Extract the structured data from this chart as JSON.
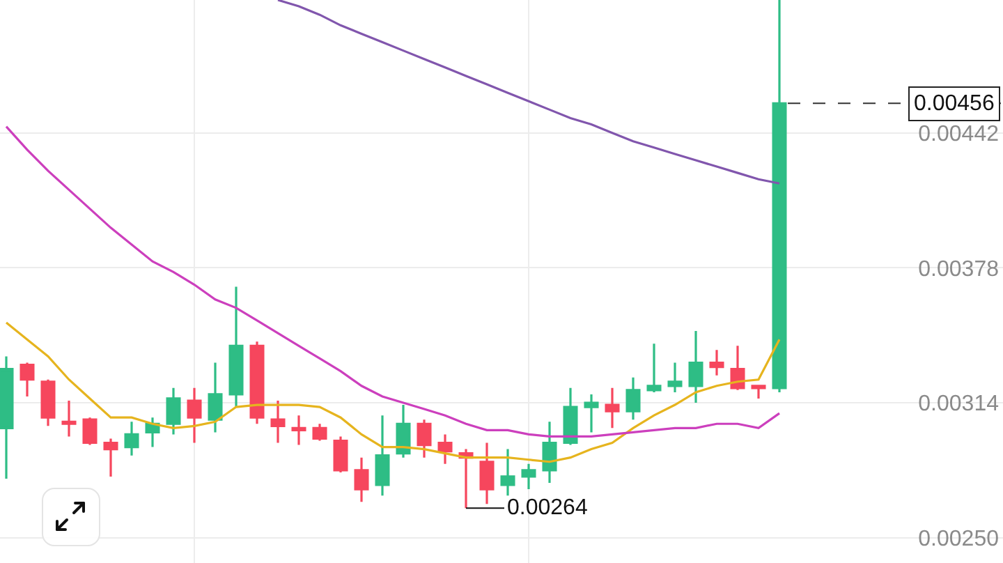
{
  "chart_data": {
    "type": "candlestick",
    "categories": [
      null,
      null,
      null,
      null,
      null,
      null,
      null,
      null,
      null,
      null,
      null,
      null,
      null,
      null,
      null,
      null,
      null,
      null,
      null,
      null,
      null,
      null,
      null,
      null,
      null,
      null,
      null,
      null,
      null,
      null,
      null,
      null,
      null,
      null,
      null,
      null,
      null,
      null
    ],
    "ohlc": [
      [
        0.00302,
        0.00336,
        0.00278,
        0.0033
      ],
      [
        0.00332,
        0.00333,
        0.00317,
        0.00325
      ],
      [
        0.00324,
        0.00325,
        0.00303,
        0.00307
      ],
      [
        0.00305,
        0.00315,
        0.00298,
        0.00304
      ],
      [
        0.00306,
        0.00307,
        0.00294,
        0.00295
      ],
      [
        0.00295,
        0.00297,
        0.00279,
        0.00292
      ],
      [
        0.00293,
        0.00305,
        0.00289,
        0.00299
      ],
      [
        0.003,
        0.00307,
        0.00293,
        0.00304
      ],
      [
        0.00304,
        0.00321,
        0.00299,
        0.00316
      ],
      [
        0.00315,
        0.00321,
        0.00295,
        0.00307
      ],
      [
        0.00306,
        0.00333,
        0.003,
        0.00318
      ],
      [
        0.00318,
        0.00369,
        0.00312,
        0.00341
      ],
      [
        0.00341,
        0.00343,
        0.00304,
        0.00307
      ],
      [
        0.00306,
        0.00315,
        0.00295,
        0.00303
      ],
      [
        0.00302,
        0.00308,
        0.00294,
        0.00301
      ],
      [
        0.00302,
        0.00304,
        0.00296,
        0.00297
      ],
      [
        0.00296,
        0.00298,
        0.00281,
        0.00282
      ],
      [
        0.00282,
        0.00288,
        0.00267,
        0.00273
      ],
      [
        0.00275,
        0.00308,
        0.0027,
        0.00289
      ],
      [
        0.0029,
        0.00313,
        0.00288,
        0.00304
      ],
      [
        0.00304,
        0.00306,
        0.00288,
        0.00294
      ],
      [
        0.00295,
        0.00299,
        0.00285,
        0.00291
      ],
      [
        0.0029,
        0.00292,
        0.00264,
        0.00288
      ],
      [
        0.00286,
        0.00295,
        0.00266,
        0.00273
      ],
      [
        0.00275,
        0.00292,
        0.0027,
        0.00279
      ],
      [
        0.00279,
        0.00285,
        0.00273,
        0.00282
      ],
      [
        0.00282,
        0.00305,
        0.00276,
        0.00295
      ],
      [
        0.00295,
        0.00321,
        0.00294,
        0.00312
      ],
      [
        0.00312,
        0.00318,
        0.003,
        0.00314
      ],
      [
        0.00313,
        0.00321,
        0.00302,
        0.0031
      ],
      [
        0.0031,
        0.00326,
        0.00306,
        0.0032
      ],
      [
        0.0032,
        0.00342,
        0.00319,
        0.00322
      ],
      [
        0.00322,
        0.00333,
        0.00319,
        0.00324
      ],
      [
        0.00322,
        0.00348,
        0.00314,
        0.00333
      ],
      [
        0.00333,
        0.00339,
        0.00327,
        0.00331
      ],
      [
        0.0033,
        0.00341,
        0.0032,
        0.00321
      ],
      [
        0.00322,
        0.00322,
        0.00316,
        0.00321
      ],
      [
        0.00321,
        0.00505,
        0.00319,
        0.00456
      ]
    ],
    "colors": [
      "#2ebd85",
      "#f6465d",
      "#f6465d",
      "#f6465d",
      "#f6465d",
      "#f6465d",
      "#2ebd85",
      "#2ebd85",
      "#2ebd85",
      "#f6465d",
      "#2ebd85",
      "#2ebd85",
      "#f6465d",
      "#f6465d",
      "#f6465d",
      "#f6465d",
      "#f6465d",
      "#f6465d",
      "#2ebd85",
      "#2ebd85",
      "#f6465d",
      "#f6465d",
      "#f6465d",
      "#f6465d",
      "#2ebd85",
      "#2ebd85",
      "#2ebd85",
      "#2ebd85",
      "#2ebd85",
      "#f6465d",
      "#2ebd85",
      "#2ebd85",
      "#2ebd85",
      "#2ebd85",
      "#f6465d",
      "#f6465d",
      "#f6465d",
      "#2ebd85"
    ],
    "series": [
      {
        "type": "line",
        "color": "#e6b41e",
        "values": [
          0.00352,
          0.00344,
          0.00336,
          0.00325,
          0.00316,
          0.00307,
          0.00307,
          0.00304,
          0.00302,
          0.00303,
          0.00305,
          0.00312,
          0.00313,
          0.00313,
          0.00313,
          0.00312,
          0.00307,
          0.00299,
          0.00293,
          0.00293,
          0.00292,
          0.0029,
          0.00288,
          0.00288,
          0.00288,
          0.00287,
          0.00286,
          0.00288,
          0.00292,
          0.00295,
          0.00302,
          0.00308,
          0.00313,
          0.00319,
          0.00322,
          0.00324,
          0.00325,
          0.00344
        ]
      },
      {
        "type": "line",
        "color": "#cc3fbd",
        "values": [
          0.00445,
          0.00434,
          0.00424,
          0.00415,
          0.00406,
          0.00397,
          0.00389,
          0.00381,
          0.00376,
          0.0037,
          0.00363,
          0.00359,
          0.00353,
          0.00347,
          0.00341,
          0.00335,
          0.00329,
          0.00322,
          0.00317,
          0.00314,
          0.00311,
          0.00308,
          0.00304,
          0.00301,
          0.00301,
          0.00299,
          0.00298,
          0.00298,
          0.00298,
          0.00299,
          0.003,
          0.00301,
          0.00302,
          0.00302,
          0.00304,
          0.00304,
          0.00302,
          0.00309
        ]
      },
      {
        "type": "line",
        "color": "#8156ad",
        "values": [
          null,
          null,
          null,
          null,
          null,
          null,
          null,
          null,
          null,
          null,
          null,
          null,
          null,
          0.00505,
          0.00502,
          0.00498,
          0.00493,
          0.00489,
          0.00485,
          0.00481,
          0.00477,
          0.00473,
          0.00469,
          0.00465,
          0.00461,
          0.00457,
          0.00453,
          0.00449,
          0.00446,
          0.00442,
          0.00438,
          0.00435,
          0.00432,
          0.00429,
          0.00426,
          0.00423,
          0.0042,
          0.00418
        ]
      }
    ],
    "ylim": [
      0.00238,
      0.00505
    ],
    "yticks": [
      {
        "value": 0.0025,
        "label": "0.00250"
      },
      0.00314,
      0.00378,
      0.00442
    ],
    "grid": true,
    "tick_labels": "y",
    "ref_lines": [
      {
        "axis": "y",
        "value": 0.00456,
        "label": "0.00456",
        "line_style": "dashed"
      }
    ],
    "annotations": [
      "0.00264"
    ]
  }
}
